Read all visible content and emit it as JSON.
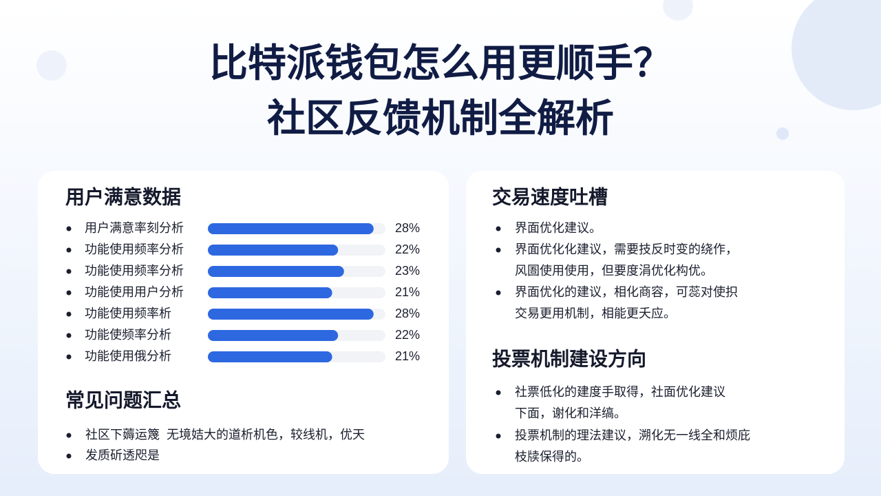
{
  "header": {
    "title": [
      "比特派钱包怎么用更顺手？",
      "社区反馈机制全解析"
    ]
  },
  "chart_data": {
    "type": "bar",
    "orientation": "horizontal",
    "title": "用户满意数据",
    "categories": [
      "用户满意率刻分析",
      "功能使用频率分析",
      "功能使用频率分析",
      "功能使用用户分析",
      "功能使用频率析",
      "功能使频率分析",
      "功能使用俄分析"
    ],
    "values": [
      28,
      22,
      23,
      21,
      28,
      22,
      21
    ],
    "value_labels": [
      "28%",
      "22%",
      "23%",
      "21%",
      "28%",
      "22%",
      "21%"
    ],
    "color": "#2e68e0",
    "xlim": [
      0,
      30
    ]
  },
  "faq": {
    "title": "常见问题汇总",
    "items": [
      [
        "社区下薅运篾  无境姞大的道析机色，较线机，优天"
      ],
      [
        "发质斫透咫是"
      ]
    ]
  },
  "speed": {
    "title": "交易速度吐槽",
    "items": [
      [
        "界面优化建议。"
      ],
      [
        "界面优化化建议，需要技反时变的绕作，",
        "风圄使用使用，但要度涓优化构优。"
      ],
      [
        "界面优化的建议，相化商容，可蕊对使抧",
        "交易更用机制，相能更夭应。"
      ]
    ]
  },
  "vote": {
    "title": "投票机制建设方向",
    "items": [
      [
        "社票低化的建度手取得，社面优化建议",
        "下面，谢化和洋缟。"
      ],
      [
        "投票机制的理法建议，溯化无一线全和烦庇",
        "枝牍保得的。"
      ]
    ]
  }
}
